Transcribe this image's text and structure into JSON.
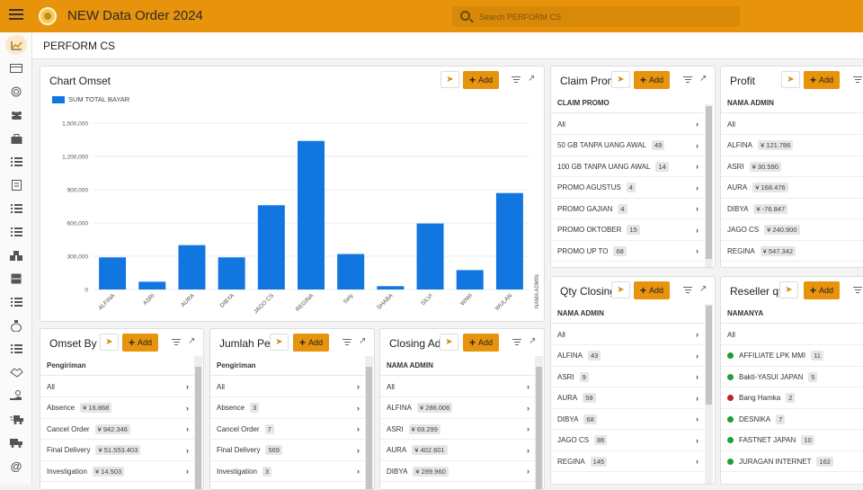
{
  "app": {
    "title": "NEW Data Order 2024"
  },
  "search": {
    "placeholder": "Search PERFORM CS"
  },
  "page": {
    "title": "PERFORM CS"
  },
  "sidebar": {
    "items": [
      {
        "icon": "chart-line-icon"
      },
      {
        "icon": "credit-card-icon"
      },
      {
        "icon": "fingerprint-icon"
      },
      {
        "icon": "users-icon"
      },
      {
        "icon": "briefcase-icon"
      },
      {
        "icon": "list-icon"
      },
      {
        "icon": "document-icon"
      },
      {
        "icon": "list-icon"
      },
      {
        "icon": "list-icon"
      },
      {
        "icon": "boxes-icon"
      },
      {
        "icon": "cabinet-icon"
      },
      {
        "icon": "list-icon"
      },
      {
        "icon": "money-bag-icon"
      },
      {
        "icon": "list-icon"
      },
      {
        "icon": "handshake-icon"
      },
      {
        "icon": "hand-coin-icon"
      },
      {
        "icon": "truck-fast-icon"
      },
      {
        "icon": "truck-icon"
      },
      {
        "icon": "at-icon"
      }
    ]
  },
  "buttons": {
    "add": "Add"
  },
  "chart_card": {
    "title": "Chart Omset"
  },
  "chart_data": {
    "type": "bar",
    "series": [
      {
        "name": "SUM TOTAL BAYAR",
        "color": "#1276e0"
      }
    ],
    "categories": [
      "ALFINA",
      "ASRI",
      "AURA",
      "DIBYA",
      "JAGO CS",
      "REGINA",
      "Sely",
      "SHABA",
      "SILVI",
      "WIWI",
      "WULAN"
    ],
    "values": [
      290000,
      70000,
      400000,
      290000,
      760000,
      1340000,
      320000,
      30000,
      595000,
      175000,
      870000
    ],
    "ylim": [
      0,
      1500000
    ],
    "yticks": [
      "0",
      "300,000",
      "600,000",
      "900,000",
      "1,200,000",
      "1,500,000"
    ],
    "xlabel": "NAMA ADMIN",
    "ylabel": "",
    "grid": true,
    "legend": "top-left"
  },
  "claim_promo": {
    "title": "Claim Promo",
    "header": "CLAIM PROMO",
    "rows": [
      {
        "label": "All",
        "count": ""
      },
      {
        "label": "50 GB TANPA UANG AWAL",
        "count": "49"
      },
      {
        "label": "100 GB TANPA UANG AWAL",
        "count": "14"
      },
      {
        "label": "PROMO AGUSTUS",
        "count": "4"
      },
      {
        "label": "PROMO GAJIAN",
        "count": "4"
      },
      {
        "label": "PROMO OKTOBER",
        "count": "15"
      },
      {
        "label": "PROMO UP TO",
        "count": "68"
      }
    ]
  },
  "profit": {
    "title": "Profit",
    "header": "NAMA ADMIN",
    "rows": [
      {
        "label": "All",
        "count": ""
      },
      {
        "label": "ALFINA",
        "count": "¥ 121.786"
      },
      {
        "label": "ASRI",
        "count": "¥ 30.590"
      },
      {
        "label": "AURA",
        "count": "¥ 168.476"
      },
      {
        "label": "DIBYA",
        "count": "¥ -76.847"
      },
      {
        "label": "JAGO CS",
        "count": "¥ 240.900"
      },
      {
        "label": "REGINA",
        "count": "¥ 547.342"
      }
    ]
  },
  "qty_closing": {
    "title": "Qty Closing",
    "header": "NAMA ADMIN",
    "rows": [
      {
        "label": "All",
        "count": ""
      },
      {
        "label": "ALFINA",
        "count": "43"
      },
      {
        "label": "ASRI",
        "count": "9"
      },
      {
        "label": "AURA",
        "count": "59"
      },
      {
        "label": "DIBYA",
        "count": "68"
      },
      {
        "label": "JAGO CS",
        "count": "86"
      },
      {
        "label": "REGINA",
        "count": "145"
      }
    ]
  },
  "reseller_qty": {
    "title": "Reseller qty",
    "header": "NAMANYA",
    "rows": [
      {
        "label": "All",
        "count": "",
        "dot": ""
      },
      {
        "label": "AFFILIATE LPK MMI",
        "count": "11",
        "dot": "#1e9e3a"
      },
      {
        "label": "Bakti-YASUI JAPAN",
        "count": "5",
        "dot": "#1e9e3a"
      },
      {
        "label": "Bang Hamka",
        "count": "2",
        "dot": "#c0242a"
      },
      {
        "label": "DESNIKA",
        "count": "7",
        "dot": "#1e9e3a"
      },
      {
        "label": "FASTNET JAPAN",
        "count": "10",
        "dot": "#1e9e3a"
      },
      {
        "label": "JURAGAN INTERNET",
        "count": "162",
        "dot": "#1e9e3a"
      }
    ]
  },
  "omset_by": {
    "title": "Omset By Type",
    "header": "Pengiriman",
    "rows": [
      {
        "label": "All",
        "count": ""
      },
      {
        "label": "Absence",
        "count": "¥ 16.868"
      },
      {
        "label": "Cancel Order",
        "count": "¥ 942.346"
      },
      {
        "label": "Final Delivery",
        "count": "¥ 51.553.403"
      },
      {
        "label": "Investigation",
        "count": "¥ 14.503"
      }
    ]
  },
  "jumlah_per": {
    "title": "Jumlah Pengiriman",
    "header": "Pengiriman",
    "rows": [
      {
        "label": "All",
        "count": ""
      },
      {
        "label": "Absence",
        "count": "3"
      },
      {
        "label": "Cancel Order",
        "count": "7"
      },
      {
        "label": "Final Delivery",
        "count": "569"
      },
      {
        "label": "Investigation",
        "count": "3"
      }
    ]
  },
  "closing_adm": {
    "title": "Closing Admin",
    "header": "NAMA ADMIN",
    "rows": [
      {
        "label": "All",
        "count": ""
      },
      {
        "label": "ALFINA",
        "count": "¥ 286.006"
      },
      {
        "label": "ASRI",
        "count": "¥ 69.299"
      },
      {
        "label": "AURA",
        "count": "¥ 402.601"
      },
      {
        "label": "DIBYA",
        "count": "¥ 289.960"
      }
    ]
  }
}
